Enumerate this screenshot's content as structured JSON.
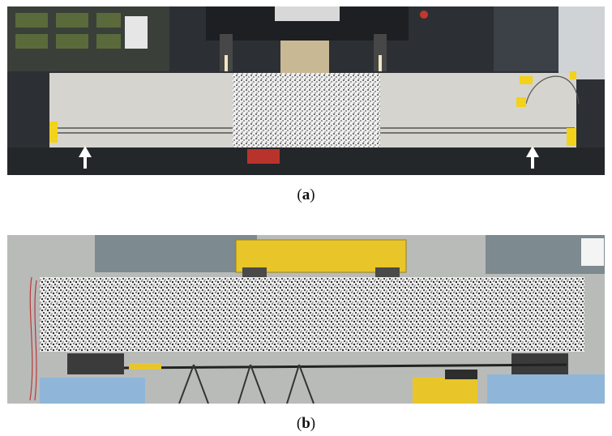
{
  "figure": {
    "panels": [
      {
        "id": "a",
        "caption_open": "(",
        "caption_letter": "a",
        "caption_close": ")"
      },
      {
        "id": "b",
        "caption_open": "(",
        "caption_letter": "b",
        "caption_close": ")"
      }
    ],
    "colors": {
      "lab_dark": "#2b2f33",
      "beam_concrete": "#d4d2cc",
      "speckle_white": "#f2f2f2",
      "speckle_black": "#151515",
      "tape_yellow": "#f2d21a",
      "loading_frame_yellow": "#e8c62a",
      "support_blue": "#8fb6d8"
    }
  }
}
